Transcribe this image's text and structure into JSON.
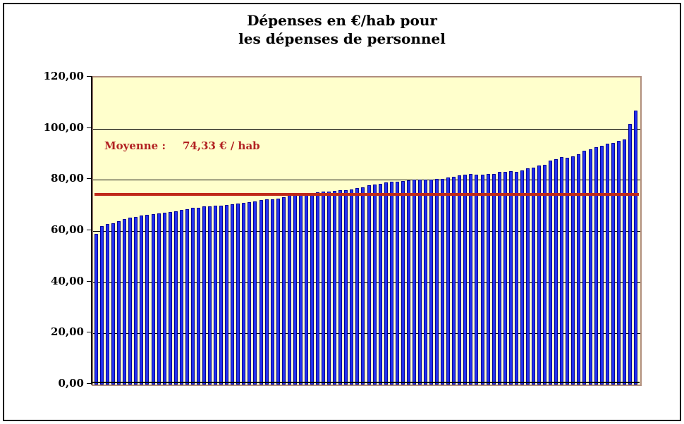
{
  "title": {
    "line1": "Dépenses en €/hab pour",
    "line2": "les dépenses de personnel"
  },
  "annotation": {
    "label": "Moyenne :",
    "value": "74,33 € / hab"
  },
  "colors": {
    "bar_fill": "#2230ee",
    "bar_border": "#000099",
    "mean_line": "#c02a1a",
    "annotation_text": "#b22222",
    "plot_background": "#ffffcc",
    "plot_border": "#b18e7e",
    "gridline": "#000000"
  },
  "chart_data": {
    "type": "bar",
    "title": "Dépenses en €/hab pour les dépenses de personnel",
    "xlabel": "",
    "ylabel": "",
    "ylim": [
      0,
      120
    ],
    "grid": true,
    "legend": false,
    "mean_value": 74.33,
    "mean_label": "Moyenne :  74,33 € / hab",
    "y_ticks": [
      {
        "value": 120,
        "label": "120,00"
      },
      {
        "value": 100,
        "label": "100,00"
      },
      {
        "value": 80,
        "label": "80,00"
      },
      {
        "value": 60,
        "label": "60,00"
      },
      {
        "value": 40,
        "label": "40,00"
      },
      {
        "value": 20,
        "label": "20,00"
      },
      {
        "value": 0,
        "label": "0,00"
      }
    ],
    "values": [
      59.0,
      62.0,
      62.7,
      63.0,
      63.9,
      64.6,
      65.2,
      65.6,
      66.0,
      66.3,
      66.5,
      67.0,
      67.2,
      67.5,
      67.8,
      68.2,
      68.6,
      69.0,
      69.2,
      69.5,
      69.6,
      69.9,
      70.0,
      70.1,
      70.4,
      70.7,
      70.9,
      71.3,
      71.5,
      72.2,
      72.4,
      72.5,
      72.7,
      73.3,
      74.0,
      74.3,
      74.5,
      74.7,
      74.9,
      75.1,
      75.3,
      75.5,
      75.7,
      75.9,
      76.1,
      76.3,
      76.8,
      77.2,
      77.8,
      78.2,
      78.5,
      79.0,
      79.2,
      79.4,
      79.5,
      79.9,
      80.0,
      80.1,
      80.1,
      80.2,
      80.3,
      80.5,
      80.8,
      81.2,
      81.8,
      82.0,
      82.2,
      82.1,
      82.1,
      82.4,
      82.3,
      83.0,
      83.1,
      83.3,
      83.0,
      83.6,
      84.5,
      84.7,
      85.6,
      86.0,
      87.6,
      88.0,
      88.8,
      88.7,
      89.1,
      90.0,
      91.3,
      91.9,
      92.8,
      93.4,
      94.1,
      94.5,
      95.3,
      95.7,
      101.8,
      107.0
    ]
  }
}
